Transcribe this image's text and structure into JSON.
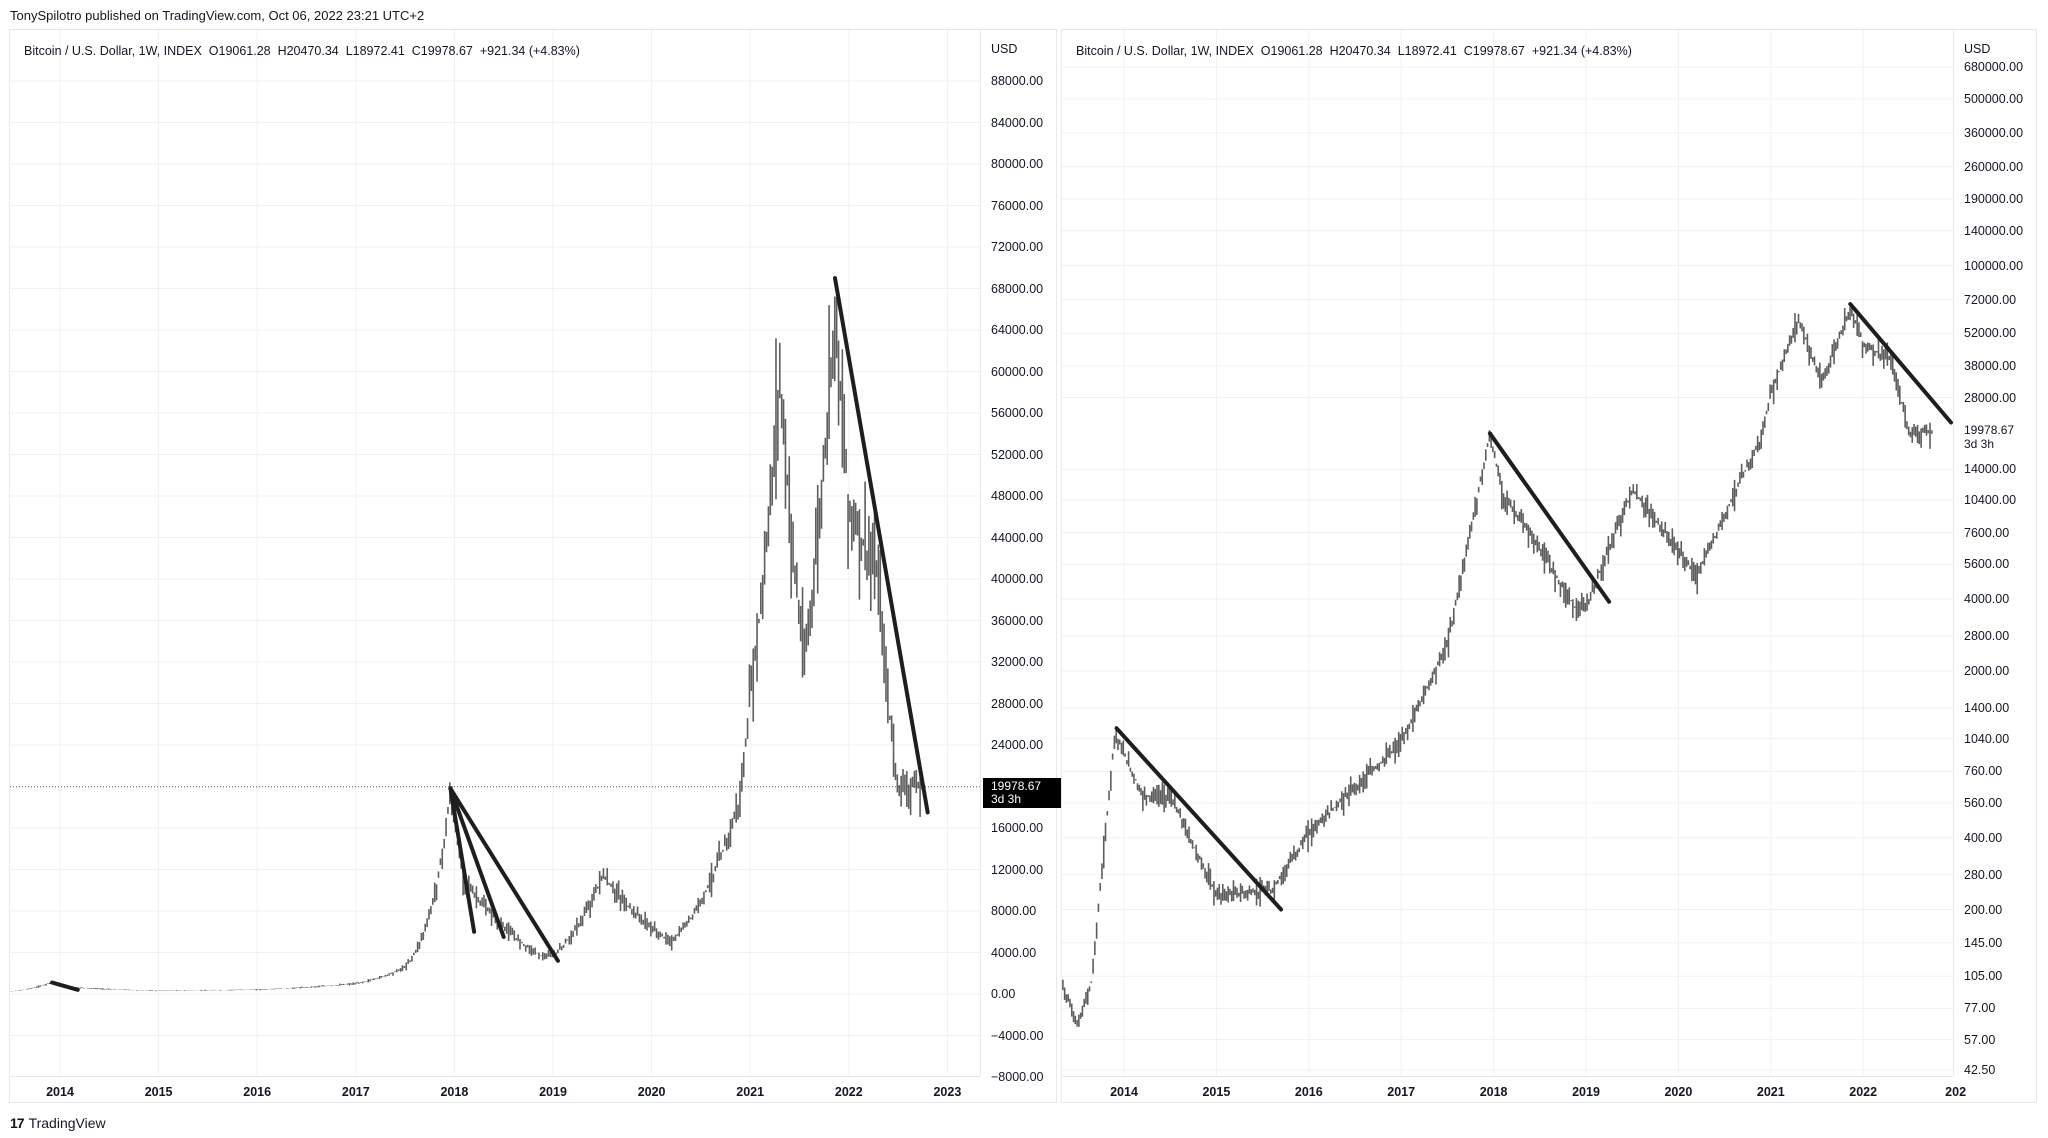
{
  "header": {
    "published": "TonySpilotro published on TradingView.com, Oct 06, 2022 23:21 UTC+2"
  },
  "footer": {
    "logo_glyph": "17",
    "brand": "TradingView"
  },
  "colors": {
    "bar": "#5d5d5d",
    "trendline": "#1e1e1e",
    "grid": "#f0f1f3",
    "border": "#e8e8ea",
    "price_tag_bg": "#000000"
  },
  "left_chart": {
    "legend": "Bitcoin / U.S. Dollar, 1W, INDEX  O19061.28  H20470.34  L18972.41  C19978.67  +921.34 (+4.83%)",
    "axis_currency": "USD",
    "scale": "linear",
    "price_ticks": [
      "88000.00",
      "84000.00",
      "80000.00",
      "76000.00",
      "72000.00",
      "68000.00",
      "64000.00",
      "60000.00",
      "56000.00",
      "52000.00",
      "48000.00",
      "44000.00",
      "40000.00",
      "36000.00",
      "32000.00",
      "28000.00",
      "24000.00",
      "16000.00",
      "12000.00",
      "8000.00",
      "4000.00",
      "0.00",
      "−4000.00",
      "−8000.00"
    ],
    "time_ticks": [
      "2014",
      "2015",
      "2016",
      "2017",
      "2018",
      "2019",
      "2020",
      "2021",
      "2022",
      "2023"
    ],
    "last_price": {
      "value": "19978.67",
      "countdown": "3d 3h"
    }
  },
  "right_chart": {
    "legend": "Bitcoin / U.S. Dollar, 1W, INDEX  O19061.28  H20470.34  L18972.41  C19978.67  +921.34 (+4.83%)",
    "axis_currency": "USD",
    "scale": "log",
    "price_ticks": [
      "680000.00",
      "500000.00",
      "360000.00",
      "260000.00",
      "190000.00",
      "140000.00",
      "100000.00",
      "72000.00",
      "52000.00",
      "38000.00",
      "28000.00",
      "14000.00",
      "10400.00",
      "7600.00",
      "5600.00",
      "4000.00",
      "2800.00",
      "2000.00",
      "1400.00",
      "1040.00",
      "760.00",
      "560.00",
      "400.00",
      "280.00",
      "200.00",
      "145.00",
      "105.00",
      "77.00",
      "57.00",
      "42.50"
    ],
    "time_ticks": [
      "2014",
      "2015",
      "2016",
      "2017",
      "2018",
      "2019",
      "2020",
      "2021",
      "2022",
      "202"
    ],
    "last_price": {
      "value": "19978.67",
      "countdown": "3d 3h"
    }
  },
  "chart_data": [
    {
      "type": "line",
      "title": "Bitcoin / U.S. Dollar, 1W, INDEX (linear scale)",
      "xlabel": "",
      "ylabel": "USD",
      "ylim": [
        -8000,
        90000
      ],
      "grid": true,
      "x": [
        2013.3,
        2013.9,
        2014.2,
        2015.0,
        2016.0,
        2017.0,
        2017.5,
        2017.96,
        2018.1,
        2018.5,
        2018.9,
        2019.0,
        2019.5,
        2019.9,
        2020.2,
        2020.6,
        2020.9,
        2021.0,
        2021.3,
        2021.55,
        2021.86,
        2022.0,
        2022.3,
        2022.5,
        2022.76
      ],
      "values": [
        120,
        1100,
        600,
        300,
        420,
        1000,
        2600,
        19500,
        11000,
        6500,
        3600,
        3700,
        11500,
        7200,
        5000,
        11000,
        19000,
        29000,
        60000,
        32000,
        67000,
        47000,
        40000,
        20000,
        19979
      ],
      "trendlines": [
        {
          "from": [
            2017.96,
            19800
          ],
          "to": [
            2018.2,
            6000
          ]
        },
        {
          "from": [
            2017.96,
            19800
          ],
          "to": [
            2018.5,
            5500
          ]
        },
        {
          "from": [
            2017.96,
            19800
          ],
          "to": [
            2019.05,
            3200
          ]
        },
        {
          "from": [
            2021.86,
            69000
          ],
          "to": [
            2022.8,
            17500
          ]
        },
        {
          "from": [
            2013.92,
            1100
          ],
          "to": [
            2014.18,
            400
          ]
        }
      ],
      "last_price": 19978.67
    },
    {
      "type": "line",
      "title": "Bitcoin / U.S. Dollar, 1W, INDEX (log scale)",
      "xlabel": "",
      "ylabel": "USD",
      "ylim": [
        42.5,
        680000
      ],
      "grid": true,
      "x": [
        2013.3,
        2013.5,
        2013.65,
        2013.9,
        2014.2,
        2014.5,
        2015.0,
        2015.6,
        2016.0,
        2016.5,
        2017.0,
        2017.5,
        2017.96,
        2018.1,
        2018.5,
        2018.9,
        2019.0,
        2019.5,
        2019.9,
        2020.2,
        2020.6,
        2020.9,
        2021.0,
        2021.3,
        2021.55,
        2021.86,
        2022.0,
        2022.3,
        2022.5,
        2022.76
      ],
      "values": [
        105,
        65,
        100,
        1100,
        600,
        600,
        230,
        240,
        420,
        650,
        1000,
        2600,
        19500,
        11000,
        6500,
        3600,
        3700,
        11500,
        7200,
        5000,
        11000,
        19000,
        29000,
        60000,
        32000,
        67000,
        47000,
        40000,
        20000,
        19979
      ],
      "trendlines": [
        {
          "from": [
            2013.92,
            1150
          ],
          "to": [
            2015.7,
            200
          ]
        },
        {
          "from": [
            2017.96,
            19800
          ],
          "to": [
            2019.25,
            3900
          ]
        },
        {
          "from": [
            2021.86,
            69000
          ],
          "to": [
            2022.95,
            22000
          ]
        }
      ],
      "last_price": 19978.67
    }
  ]
}
